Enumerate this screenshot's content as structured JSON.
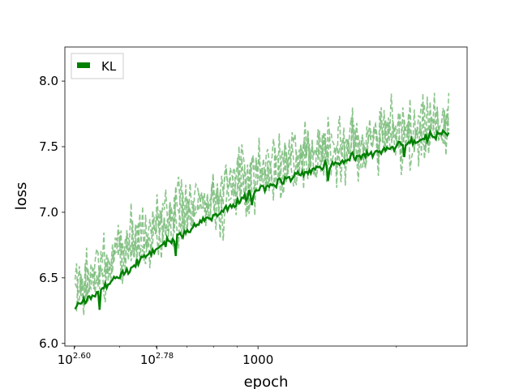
{
  "chart_data": {
    "type": "line",
    "xlabel": "epoch",
    "ylabel": "loss",
    "xscale": "log",
    "xlim": [
      380,
      2850
    ],
    "ylim": [
      5.98,
      8.26
    ],
    "x_ticks": [
      {
        "value": 398.1,
        "label": "10",
        "exp": "2.60"
      },
      {
        "value": 602.6,
        "label": "10",
        "exp": "2.78"
      },
      {
        "value": 1000,
        "label": "1000",
        "exp": ""
      }
    ],
    "y_ticks": [
      {
        "value": 6.0,
        "label": "6.0"
      },
      {
        "value": 6.5,
        "label": "6.5"
      },
      {
        "value": 7.0,
        "label": "7.0"
      },
      {
        "value": 7.5,
        "label": "7.5"
      },
      {
        "value": 8.0,
        "label": "8.0"
      }
    ],
    "grid": false,
    "legend_position": "top-left",
    "series": [
      {
        "name": "KL",
        "color": "#008000",
        "style": "solid",
        "x": [
          400,
          450,
          500,
          550,
          600,
          700,
          800,
          900,
          1000,
          1200,
          1500,
          1800,
          2100,
          2400,
          2600
        ],
        "values": [
          6.28,
          6.4,
          6.52,
          6.62,
          6.72,
          6.86,
          6.98,
          7.08,
          7.17,
          7.28,
          7.38,
          7.46,
          7.53,
          7.58,
          7.6
        ]
      },
      {
        "name": "",
        "color": "#7fbf7f",
        "style": "dashed",
        "x": [
          400,
          450,
          500,
          550,
          600,
          700,
          800,
          900,
          1000,
          1200,
          1500,
          1800,
          2100,
          2400,
          2600
        ],
        "values": [
          6.4,
          6.55,
          6.68,
          6.78,
          6.88,
          7.0,
          7.1,
          7.2,
          7.3,
          7.4,
          7.48,
          7.55,
          7.6,
          7.64,
          7.66
        ]
      }
    ]
  }
}
